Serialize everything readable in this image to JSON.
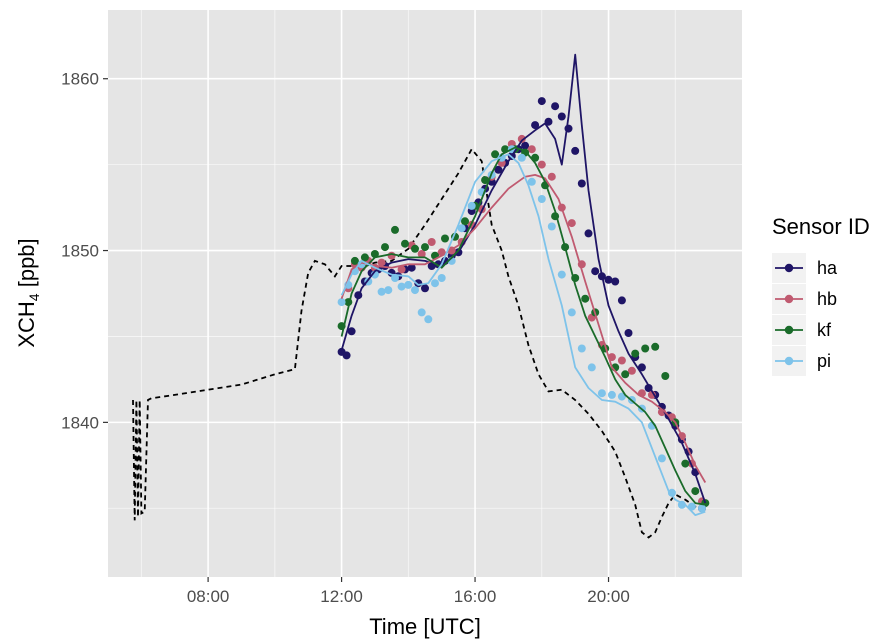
{
  "chart_data": {
    "type": "line",
    "xlabel": "Time [UTC]",
    "ylabel_main": "XCH",
    "ylabel_sub": "4",
    "ylabel_unit": " [ppb]",
    "xlim": [
      5.0,
      24.0
    ],
    "ylim": [
      1831.0,
      1864.0
    ],
    "x_ticks": [
      8,
      12,
      16,
      20
    ],
    "x_tick_labels": [
      "08:00",
      "12:00",
      "16:00",
      "20:00"
    ],
    "y_ticks": [
      1840,
      1850,
      1860
    ],
    "y_tick_labels": [
      "1840",
      "1850",
      "1860"
    ],
    "grid": true,
    "legend_title": "Sensor ID",
    "legend_position": "right",
    "colors": {
      "panel_bg": "#e5e5e5",
      "grid": "#ffffff",
      "background_line": "#000000",
      "ha": "#1f1566",
      "hb": "#c05a70",
      "kf": "#1a6b2a",
      "pi": "#7ec3ea"
    },
    "background": {
      "style": "dashed",
      "x": [
        5.75,
        5.8,
        5.85,
        5.9,
        5.95,
        6.0,
        6.1,
        6.2,
        6.3,
        7.0,
        8.0,
        9.0,
        10.0,
        10.6,
        10.8,
        11.0,
        11.2,
        11.5,
        11.8,
        12.0,
        12.3,
        12.6,
        13.0,
        13.5,
        14.0,
        14.5,
        15.0,
        15.5,
        15.9,
        16.2,
        16.5,
        16.8,
        17.0,
        17.3,
        17.6,
        17.9,
        18.2,
        18.6,
        19.0,
        19.4,
        19.8,
        20.2,
        20.5,
        20.8,
        21.0,
        21.2,
        21.4,
        21.6,
        21.8,
        22.0,
        22.3,
        22.6,
        22.9
      ],
      "y": [
        1841.3,
        1834.3,
        1841.3,
        1834.5,
        1841.3,
        1834.7,
        1834.8,
        1841.3,
        1841.4,
        1841.6,
        1841.9,
        1842.2,
        1842.8,
        1843.1,
        1846.5,
        1848.7,
        1849.4,
        1849.2,
        1848.5,
        1849.1,
        1849.1,
        1849.0,
        1849.3,
        1849.4,
        1850.1,
        1851.5,
        1853.0,
        1854.5,
        1855.9,
        1855.2,
        1851.5,
        1850.0,
        1848.5,
        1846.8,
        1844.5,
        1842.8,
        1841.8,
        1841.9,
        1841.3,
        1840.5,
        1839.5,
        1838.3,
        1836.8,
        1835.2,
        1833.6,
        1833.3,
        1833.6,
        1834.5,
        1835.3,
        1835.8,
        1835.5,
        1835.1,
        1835.0
      ]
    },
    "series": [
      {
        "name": "ha",
        "line_x": [
          12.0,
          12.3,
          12.6,
          13.0,
          13.5,
          14.0,
          14.5,
          15.0,
          15.5,
          16.0,
          16.5,
          17.0,
          17.4,
          17.8,
          18.1,
          18.4,
          18.6,
          18.8,
          19.0,
          19.2,
          19.4,
          19.7,
          20.0,
          20.3,
          20.6,
          21.0,
          21.4,
          21.8,
          22.2,
          22.6,
          22.9
        ],
        "line_y": [
          1844.2,
          1846.2,
          1847.8,
          1848.8,
          1849.3,
          1849.5,
          1849.4,
          1849.1,
          1849.9,
          1851.5,
          1853.5,
          1855.2,
          1856.4,
          1857.0,
          1857.4,
          1856.5,
          1855.0,
          1857.8,
          1861.4,
          1857.3,
          1853.5,
          1849.5,
          1846.8,
          1845.3,
          1844.0,
          1842.8,
          1841.5,
          1840.2,
          1838.8,
          1837.0,
          1835.3
        ],
        "points_x": [
          12.0,
          12.15,
          12.3,
          12.5,
          12.7,
          12.9,
          13.1,
          13.3,
          13.5,
          13.7,
          13.9,
          14.1,
          14.3,
          14.5,
          14.7,
          14.9,
          15.1,
          15.3,
          15.5,
          15.7,
          15.9,
          16.1,
          16.3,
          16.5,
          16.7,
          16.9,
          17.1,
          17.3,
          17.5,
          17.8,
          18.0,
          18.2,
          18.4,
          18.6,
          18.8,
          19.0,
          19.2,
          19.4,
          19.6,
          19.8,
          20.0,
          20.2,
          20.4,
          20.6,
          20.8,
          21.0,
          21.2,
          21.4,
          21.6,
          21.8,
          22.0,
          22.2,
          22.4,
          22.6,
          22.8
        ],
        "points_y": [
          1844.1,
          1843.9,
          1845.3,
          1847.4,
          1848.2,
          1848.7,
          1848.9,
          1849.1,
          1848.7,
          1848.5,
          1848.9,
          1849.0,
          1848.1,
          1847.8,
          1849.1,
          1849.2,
          1849.4,
          1849.7,
          1849.9,
          1851.3,
          1852.3,
          1852.8,
          1853.6,
          1854.0,
          1854.7,
          1855.1,
          1855.5,
          1855.9,
          1856.1,
          1857.3,
          1858.7,
          1857.5,
          1858.4,
          1857.8,
          1857.1,
          1855.8,
          1853.9,
          1851.0,
          1848.8,
          1848.5,
          1848.3,
          1848.2,
          1847.1,
          1845.2,
          1843.8,
          1843.2,
          1842.0,
          1841.6,
          1840.9,
          1840.4,
          1839.8,
          1839.0,
          1838.3,
          1837.1,
          1835.0
        ]
      },
      {
        "name": "hb",
        "line_x": [
          12.0,
          12.3,
          12.6,
          13.0,
          13.5,
          14.0,
          14.5,
          15.0,
          15.5,
          16.0,
          16.5,
          17.0,
          17.5,
          17.8,
          18.1,
          18.5,
          18.9,
          19.3,
          19.7,
          20.1,
          20.5,
          20.9,
          21.3,
          21.7,
          22.0,
          22.3,
          22.6,
          22.9
        ],
        "line_y": [
          1847.2,
          1848.9,
          1849.3,
          1849.1,
          1849.0,
          1849.2,
          1849.2,
          1849.7,
          1850.3,
          1851.3,
          1852.5,
          1853.6,
          1854.3,
          1854.4,
          1854.2,
          1853.0,
          1850.8,
          1848.2,
          1845.7,
          1843.2,
          1842.3,
          1841.6,
          1841.2,
          1840.6,
          1840.0,
          1838.8,
          1837.5,
          1836.5
        ],
        "points_x": [
          12.2,
          12.4,
          12.6,
          12.8,
          13.0,
          13.2,
          13.5,
          13.8,
          14.1,
          14.4,
          14.7,
          15.0,
          15.3,
          15.6,
          15.9,
          16.2,
          16.5,
          16.8,
          17.1,
          17.4,
          17.7,
          18.0,
          18.3,
          18.6,
          18.9,
          19.2,
          19.5,
          19.8,
          20.1,
          20.4,
          20.7,
          21.0,
          21.3,
          21.6,
          21.9,
          22.2,
          22.5,
          22.8
        ],
        "points_y": [
          1847.8,
          1849.2,
          1849.0,
          1849.4,
          1849.0,
          1849.3,
          1849.7,
          1848.9,
          1850.3,
          1849.8,
          1850.5,
          1849.9,
          1850.0,
          1850.5,
          1851.5,
          1852.4,
          1854.3,
          1855.1,
          1856.2,
          1856.5,
          1855.9,
          1855.0,
          1854.3,
          1852.5,
          1851.6,
          1849.2,
          1846.1,
          1844.5,
          1843.8,
          1843.6,
          1843.0,
          1841.7,
          1841.6,
          1840.6,
          1840.3,
          1839.2,
          1837.6,
          1835.4
        ]
      },
      {
        "name": "kf",
        "line_x": [
          12.0,
          12.3,
          12.6,
          13.0,
          13.5,
          14.0,
          14.5,
          15.0,
          15.5,
          16.0,
          16.5,
          16.8,
          17.2,
          17.5,
          17.8,
          18.1,
          18.4,
          18.7,
          19.0,
          19.3,
          19.6,
          19.9,
          20.2,
          20.5,
          20.8,
          21.1,
          21.4,
          21.7,
          22.0,
          22.3,
          22.6,
          22.9
        ],
        "line_y": [
          1845.0,
          1847.5,
          1848.8,
          1849.6,
          1849.8,
          1849.6,
          1849.6,
          1849.0,
          1850.0,
          1852.0,
          1854.5,
          1855.6,
          1856.0,
          1855.8,
          1855.1,
          1854.0,
          1852.3,
          1850.2,
          1848.0,
          1846.2,
          1845.0,
          1843.8,
          1842.5,
          1841.6,
          1841.1,
          1840.6,
          1839.8,
          1838.5,
          1837.2,
          1836.0,
          1835.3,
          1835.2
        ],
        "points_x": [
          12.0,
          12.2,
          12.4,
          12.7,
          13.0,
          13.3,
          13.6,
          13.9,
          14.2,
          14.5,
          14.8,
          15.1,
          15.4,
          15.7,
          16.0,
          16.3,
          16.6,
          16.9,
          17.2,
          17.5,
          17.8,
          18.1,
          18.4,
          18.7,
          19.0,
          19.3,
          19.6,
          19.9,
          20.2,
          20.5,
          20.8,
          21.1,
          21.4,
          21.7,
          22.0,
          22.3,
          22.6,
          22.9
        ],
        "points_y": [
          1845.6,
          1847.0,
          1849.4,
          1849.6,
          1849.8,
          1850.2,
          1851.2,
          1850.4,
          1850.1,
          1850.2,
          1849.7,
          1850.7,
          1850.8,
          1851.7,
          1852.6,
          1854.1,
          1855.6,
          1855.9,
          1855.9,
          1855.7,
          1855.4,
          1853.8,
          1852.0,
          1850.2,
          1848.4,
          1847.2,
          1846.4,
          1844.3,
          1843.2,
          1842.8,
          1844.0,
          1844.3,
          1844.4,
          1842.7,
          1840.0,
          1837.6,
          1836.0,
          1835.3
        ]
      },
      {
        "name": "pi",
        "line_x": [
          12.0,
          12.3,
          12.6,
          13.0,
          13.5,
          14.0,
          14.3,
          14.6,
          15.0,
          15.5,
          16.0,
          16.5,
          17.0,
          17.3,
          17.6,
          17.9,
          18.2,
          18.6,
          19.0,
          19.4,
          19.8,
          20.2,
          20.6,
          21.0,
          21.4,
          21.8,
          22.0,
          22.3,
          22.6,
          22.9
        ],
        "line_y": [
          1847.4,
          1848.6,
          1849.4,
          1849.0,
          1848.6,
          1848.5,
          1848.0,
          1848.1,
          1849.2,
          1851.5,
          1854.0,
          1855.2,
          1855.6,
          1855.1,
          1853.8,
          1852.0,
          1849.5,
          1846.8,
          1843.2,
          1842.0,
          1841.3,
          1841.2,
          1840.8,
          1840.0,
          1838.0,
          1836.0,
          1835.5,
          1835.2,
          1834.6,
          1834.8
        ],
        "points_x": [
          12.0,
          12.2,
          12.4,
          12.6,
          12.8,
          13.0,
          13.2,
          13.4,
          13.6,
          13.8,
          14.0,
          14.2,
          14.4,
          14.6,
          14.8,
          15.0,
          15.3,
          15.6,
          15.9,
          16.2,
          16.5,
          16.8,
          17.1,
          17.4,
          17.7,
          18.0,
          18.3,
          18.6,
          18.9,
          19.2,
          19.5,
          19.8,
          20.1,
          20.4,
          20.7,
          21.0,
          21.3,
          21.6,
          21.9,
          22.2,
          22.5,
          22.8
        ],
        "points_y": [
          1847.0,
          1848.0,
          1848.8,
          1849.2,
          1848.2,
          1848.6,
          1847.6,
          1847.7,
          1848.4,
          1847.9,
          1848.0,
          1847.7,
          1846.4,
          1846.0,
          1848.1,
          1848.4,
          1849.4,
          1851.3,
          1852.6,
          1853.4,
          1854.4,
          1855.4,
          1855.9,
          1855.4,
          1854.0,
          1853.0,
          1851.4,
          1848.6,
          1846.4,
          1844.3,
          1843.2,
          1841.7,
          1841.6,
          1841.5,
          1841.3,
          1840.8,
          1839.8,
          1837.9,
          1835.9,
          1835.2,
          1835.1,
          1835.0
        ]
      }
    ]
  }
}
